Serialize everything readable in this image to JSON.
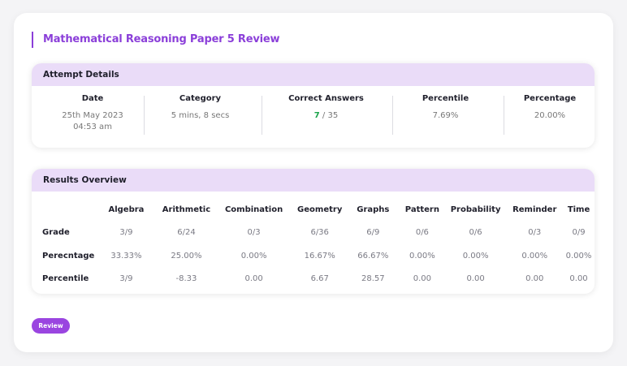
{
  "page_title": "Mathematical Reasoning Paper 5 Review",
  "attempt_details": {
    "header": "Attempt Details",
    "date_label": "Date",
    "date_value_line1": "25th May 2023",
    "date_value_line2": "04:53 am",
    "category_label": "Category",
    "category_value": "5 mins, 8 secs",
    "correct_label": "Correct Answers",
    "correct_value": "7",
    "correct_total": " / 35",
    "percentile_label": "Percentile",
    "percentile_value": "7.69%",
    "percentage_label": "Percentage",
    "percentage_value": "20.00%"
  },
  "results_overview": {
    "header": "Results Overview",
    "columns": [
      "Algebra",
      "Arithmetic",
      "Combination",
      "Geometry",
      "Graphs",
      "Pattern",
      "Probability",
      "Reminder",
      "Time"
    ],
    "rows": [
      {
        "label": "Grade",
        "values": [
          "3/9",
          "6/24",
          "0/3",
          "6/36",
          "6/9",
          "0/6",
          "0/6",
          "0/3",
          "0/9"
        ]
      },
      {
        "label": "Perecntage",
        "values": [
          "33.33%",
          "25.00%",
          "0.00%",
          "16.67%",
          "66.67%",
          "0.00%",
          "0.00%",
          "0.00%",
          "0.00%"
        ]
      },
      {
        "label": "Percentile",
        "values": [
          "3/9",
          "-8.33",
          "0.00",
          "6.67",
          "28.57",
          "0.00",
          "0.00",
          "0.00",
          "0.00"
        ]
      }
    ]
  },
  "review_button": "Review",
  "colors": {
    "accent": "#8b3fd9",
    "header_bg": "#eadcf8",
    "correct_green": "#1aa34a",
    "button": "#9a45e0"
  }
}
